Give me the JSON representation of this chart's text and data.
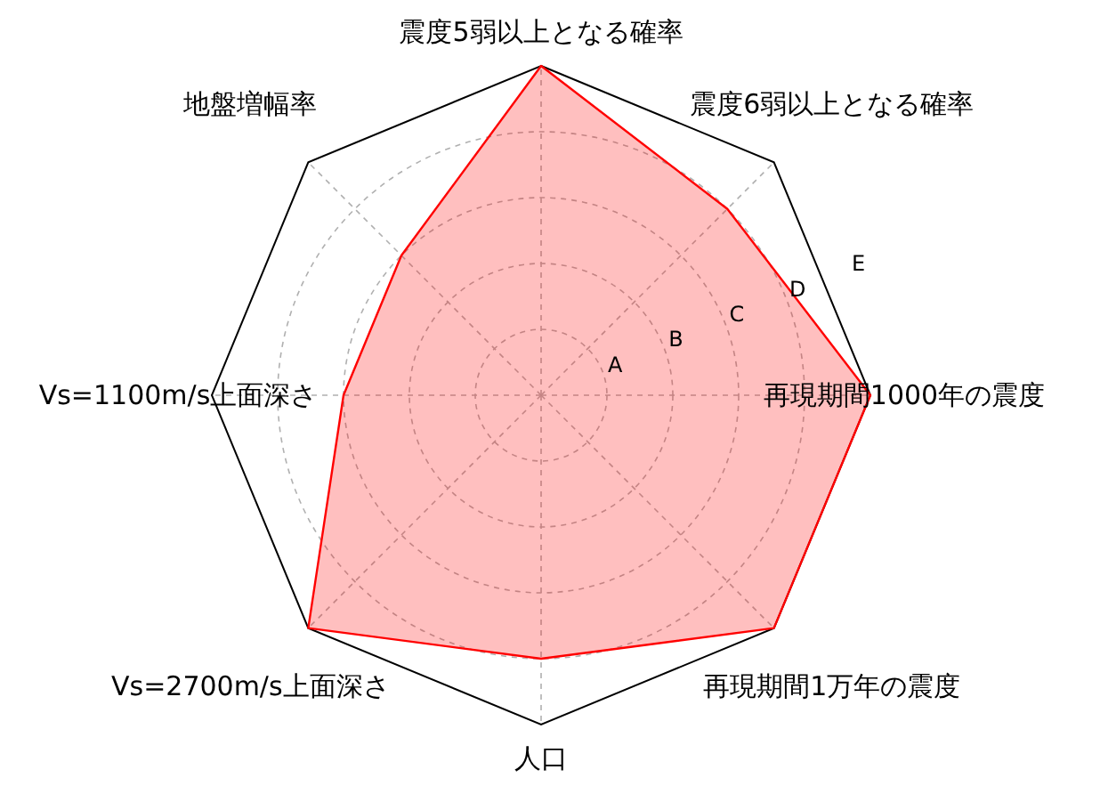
{
  "chart_data": {
    "type": "radar",
    "categories": [
      "震度5弱以上となる確率",
      "震度6弱以上となる確率",
      "再現期間1000年の震度",
      "再現期間1万年の震度",
      "人口",
      "Vs=2700m/s上面深さ",
      "Vs=1100m/s上面深さ",
      "地盤増幅率"
    ],
    "series": [
      {
        "color": "#ff0000",
        "values": [
          5,
          4,
          5,
          5,
          4,
          5,
          3,
          3
        ]
      }
    ],
    "ylim": [
      0,
      5
    ],
    "yticks": [
      {
        "value": 1,
        "label": "A"
      },
      {
        "value": 2,
        "label": "B"
      },
      {
        "value": 3,
        "label": "C"
      },
      {
        "value": 4,
        "label": "D"
      },
      {
        "value": 5,
        "label": "E"
      }
    ],
    "grid": true
  }
}
